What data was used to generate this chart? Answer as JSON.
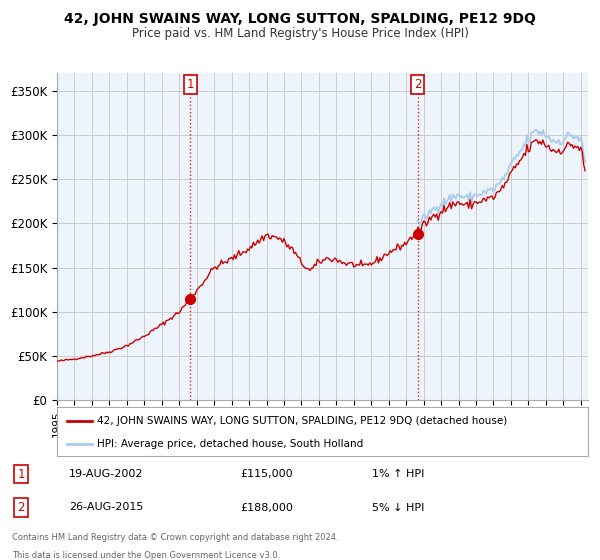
{
  "title": "42, JOHN SWAINS WAY, LONG SUTTON, SPALDING, PE12 9DQ",
  "subtitle": "Price paid vs. HM Land Registry's House Price Index (HPI)",
  "sale1_date_str": "2002-08-19",
  "sale1_price": 115000,
  "sale1_display": "19-AUG-2002",
  "sale1_pct": "1% ↑ HPI",
  "sale2_date_str": "2015-08-26",
  "sale2_price": 188000,
  "sale2_display": "26-AUG-2015",
  "sale2_pct": "5% ↓ HPI",
  "legend_line1": "42, JOHN SWAINS WAY, LONG SUTTON, SPALDING, PE12 9DQ (detached house)",
  "legend_line2": "HPI: Average price, detached house, South Holland",
  "footer1": "Contains HM Land Registry data © Crown copyright and database right 2024.",
  "footer2": "This data is licensed under the Open Government Licence v3.0.",
  "red_color": "#cc0000",
  "blue_color": "#aaccee",
  "plot_bg": "#eef4fb",
  "background_color": "#ffffff",
  "grid_color": "#cccccc",
  "ylim": [
    0,
    370000
  ],
  "yticks": [
    0,
    50000,
    100000,
    150000,
    200000,
    250000,
    300000,
    350000
  ],
  "ytick_labels": [
    "£0",
    "£50K",
    "£100K",
    "£150K",
    "£200K",
    "£250K",
    "£300K",
    "£350K"
  ]
}
